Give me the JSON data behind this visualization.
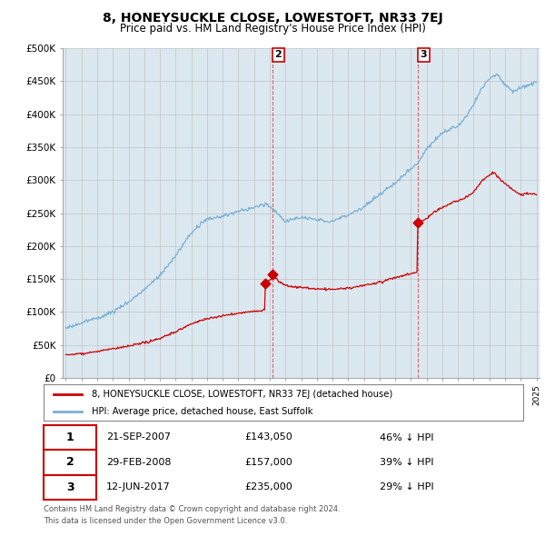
{
  "title": "8, HONEYSUCKLE CLOSE, LOWESTOFT, NR33 7EJ",
  "subtitle": "Price paid vs. HM Land Registry's House Price Index (HPI)",
  "hpi_color": "#7ab0d4",
  "price_color": "#cc0000",
  "bg_color": "#dce8f0",
  "ylim": [
    0,
    500000
  ],
  "yticks": [
    0,
    50000,
    100000,
    150000,
    200000,
    250000,
    300000,
    350000,
    400000,
    450000,
    500000
  ],
  "legend_house": "8, HONEYSUCKLE CLOSE, LOWESTOFT, NR33 7EJ (detached house)",
  "legend_hpi": "HPI: Average price, detached house, East Suffolk",
  "footer1": "Contains HM Land Registry data © Crown copyright and database right 2024.",
  "footer2": "This data is licensed under the Open Government Licence v3.0.",
  "xmin": 1994.8,
  "xmax": 2025.2,
  "sale1_x": 2007.72,
  "sale1_y": 143050,
  "sale2_x": 2008.16,
  "sale2_y": 157000,
  "sale3_x": 2017.44,
  "sale3_y": 235000,
  "vline_color": "#dd4444",
  "vline2_x": 2008.16,
  "vline3_x": 2017.44,
  "rows": [
    [
      "1",
      "21-SEP-2007",
      "£143,050",
      "46% ↓ HPI"
    ],
    [
      "2",
      "29-FEB-2008",
      "£157,000",
      "39% ↓ HPI"
    ],
    [
      "3",
      "12-JUN-2017",
      "£235,000",
      "29% ↓ HPI"
    ]
  ]
}
